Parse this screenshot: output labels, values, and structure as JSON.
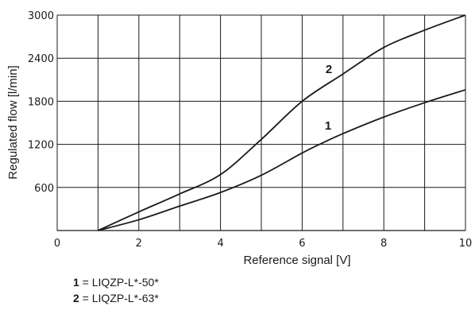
{
  "chart_data": {
    "type": "line",
    "xlabel": "Reference signal [V]",
    "ylabel": "Regulated flow [l/min]",
    "xlim": [
      0,
      10
    ],
    "ylim": [
      0,
      3000
    ],
    "x_ticks": [
      "0",
      "2",
      "4",
      "6",
      "8",
      "10"
    ],
    "y_ticks": [
      "600",
      "1200",
      "1800",
      "2400",
      "3000"
    ],
    "y_ticks_display": [
      "600",
      "1200",
      "1800",
      "2400",
      "3000"
    ],
    "grid": true,
    "series": [
      {
        "name": "1",
        "x": [
          1,
          2,
          3,
          4,
          5,
          6,
          6.5,
          7,
          8,
          9,
          10
        ],
        "y": [
          0,
          150,
          340,
          530,
          770,
          1080,
          1220,
          1350,
          1580,
          1780,
          1960
        ]
      },
      {
        "name": "2",
        "x": [
          1,
          2,
          3,
          4,
          5,
          6,
          7,
          8,
          9,
          10
        ],
        "y": [
          0,
          260,
          510,
          780,
          1270,
          1800,
          2180,
          2550,
          2790,
          3000
        ]
      }
    ],
    "curve_labels": [
      "1",
      "2"
    ]
  },
  "legend": [
    {
      "num": "1",
      "text": " = LIQZP-L*-50*"
    },
    {
      "num": "2",
      "text": " = LIQZP-L*-63*"
    }
  ]
}
